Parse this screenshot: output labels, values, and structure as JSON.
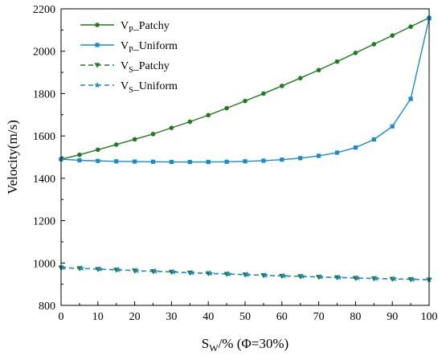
{
  "chart_data": {
    "type": "line",
    "title": "",
    "xlabel": {
      "main": "S",
      "sub": "W",
      "rest": "/% (Φ=30%)"
    },
    "ylabel": "Velocity(m/s)",
    "xlim": [
      0,
      100
    ],
    "ylim": [
      800,
      2200
    ],
    "xticks": [
      0,
      10,
      20,
      30,
      40,
      50,
      60,
      70,
      80,
      90,
      100
    ],
    "yticks": [
      800,
      1000,
      1200,
      1400,
      1600,
      1800,
      2000,
      2200
    ],
    "grid": false,
    "legend_position": "top-left",
    "x": [
      0,
      5,
      10,
      15,
      20,
      25,
      30,
      35,
      40,
      45,
      50,
      55,
      60,
      65,
      70,
      75,
      80,
      85,
      90,
      95,
      100
    ],
    "series": [
      {
        "name": {
          "main": "V",
          "sub": "P",
          "rest": "_Patchy"
        },
        "color": "#1e7b1e",
        "dash": "solid",
        "marker": "circle",
        "values": [
          1490,
          1511,
          1535,
          1559,
          1584,
          1609,
          1638,
          1667,
          1698,
          1731,
          1765,
          1800,
          1836,
          1873,
          1911,
          1951,
          1992,
          2033,
          2074,
          2116,
          2158
        ]
      },
      {
        "name": {
          "main": "V",
          "sub": "P",
          "rest": "_Uniform"
        },
        "color": "#1c8ac9",
        "dash": "solid",
        "marker": "square",
        "values": [
          1490,
          1485,
          1482,
          1480,
          1479,
          1478,
          1477,
          1477,
          1477,
          1478,
          1480,
          1483,
          1488,
          1495,
          1506,
          1521,
          1545,
          1583,
          1645,
          1775,
          2155
        ]
      },
      {
        "name": {
          "main": "V",
          "sub": "S",
          "rest": "_Patchy"
        },
        "color": "#1e7b1e",
        "dash": "dashed",
        "marker": "triangle-down",
        "values": [
          978,
          975,
          971,
          968,
          964,
          961,
          958,
          954,
          951,
          948,
          945,
          942,
          939,
          937,
          934,
          932,
          929,
          927,
          925,
          923,
          921
        ]
      },
      {
        "name": {
          "main": "V",
          "sub": "S",
          "rest": "_Uniform"
        },
        "color": "#1c8ac9",
        "dash": "dashed",
        "marker": "star",
        "values": [
          978,
          975,
          971,
          968,
          964,
          961,
          958,
          954,
          951,
          948,
          945,
          942,
          939,
          937,
          934,
          932,
          929,
          927,
          925,
          923,
          921
        ]
      }
    ]
  }
}
